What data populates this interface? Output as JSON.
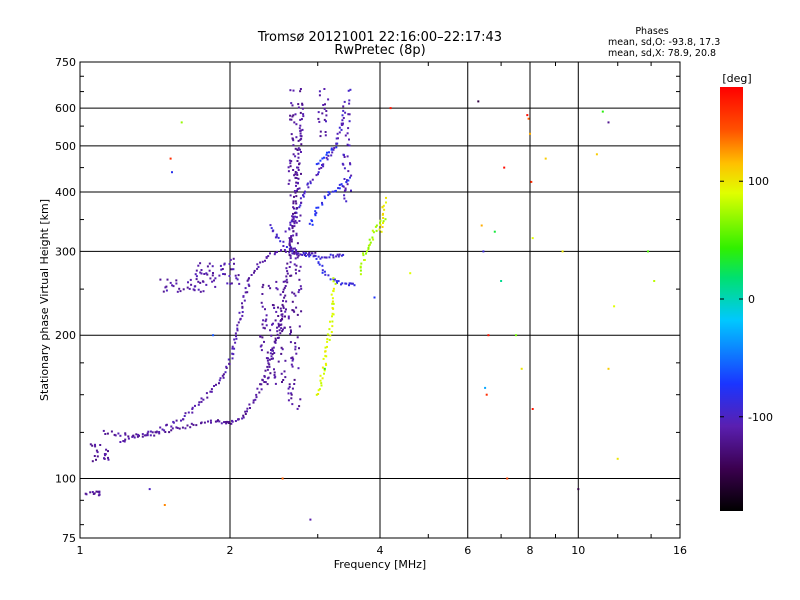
{
  "chart_data": {
    "type": "scatter",
    "title": "Tromsø 20121001 22:16:00–22:17:43",
    "subtitle": "RwPretec (8p)",
    "xlabel": "Frequency [MHz]",
    "ylabel": "Stationary phase Virtual Height [km]",
    "x_scale": "log",
    "y_scale": "log",
    "xlim": [
      1,
      16
    ],
    "ylim": [
      75,
      750
    ],
    "x_ticks": [
      1,
      2,
      4,
      6,
      8,
      10,
      16
    ],
    "x_tick_labels": [
      "1",
      "2",
      "4",
      "6",
      "8",
      "10",
      "16"
    ],
    "y_ticks": [
      75,
      100,
      200,
      300,
      400,
      500,
      600,
      750
    ],
    "y_tick_labels": [
      "75",
      "100",
      "200",
      "300",
      "400",
      "500",
      "600",
      "750"
    ],
    "grid": true,
    "colorbar": {
      "label": "[deg]",
      "range": [
        -180,
        180
      ],
      "ticks": [
        100,
        0,
        -100
      ],
      "tick_labels": [
        "100",
        "0",
        "-100"
      ]
    },
    "annotation": {
      "heading": "Phases",
      "line1": "mean, sd,O:  -93.8, 17.3",
      "line2": "mean, sd,X:  78.9, 20.8"
    },
    "series": [
      {
        "kind": "curve",
        "phase": -115,
        "x": [
          1.12,
          1.2,
          1.3,
          1.4,
          1.5,
          1.6,
          1.7,
          1.8,
          1.9,
          1.95,
          2.0,
          2.05,
          2.1,
          2.15,
          2.2,
          2.3,
          2.4,
          2.5,
          2.55,
          2.6,
          2.65,
          2.7,
          2.75,
          2.8
        ],
        "y": [
          125,
          124,
          123,
          124,
          126,
          128,
          130,
          131,
          132,
          131,
          131,
          132,
          134,
          137,
          142,
          155,
          175,
          200,
          230,
          260,
          310,
          380,
          480,
          620
        ]
      },
      {
        "kind": "curve",
        "phase": -110,
        "x": [
          1.2,
          1.3,
          1.45,
          1.6,
          1.75,
          1.9,
          2.0,
          2.05,
          2.1,
          2.15,
          2.2,
          2.3,
          2.4,
          2.5,
          2.6,
          2.7,
          2.8,
          2.9,
          3.0
        ],
        "y": [
          120,
          122,
          127,
          133,
          145,
          158,
          175,
          200,
          220,
          245,
          265,
          285,
          295,
          300,
          300,
          298,
          297,
          297,
          298
        ]
      },
      {
        "kind": "curve",
        "phase": -95,
        "x": [
          2.4,
          2.5,
          2.6,
          2.7,
          2.8,
          2.9,
          3.0,
          3.1,
          3.2,
          3.3,
          3.4
        ],
        "y": [
          340,
          320,
          308,
          300,
          296,
          294,
          292,
          292,
          293,
          294,
          296
        ]
      },
      {
        "kind": "curve",
        "phase": -85,
        "x": [
          3.0,
          3.1,
          3.2,
          3.3,
          3.4,
          3.5,
          3.55
        ],
        "y": [
          290,
          270,
          262,
          258,
          257,
          256,
          255
        ]
      },
      {
        "kind": "curve",
        "phase": -80,
        "x": [
          2.9,
          3.0,
          3.1,
          3.2,
          3.3,
          3.4,
          3.5
        ],
        "y": [
          340,
          370,
          390,
          400,
          410,
          420,
          430
        ]
      },
      {
        "kind": "curve",
        "phase": -75,
        "x": [
          3.0,
          3.1,
          3.2,
          3.3
        ],
        "y": [
          460,
          470,
          490,
          510
        ]
      },
      {
        "kind": "curve",
        "phase": -100,
        "x": [
          2.6,
          2.7,
          2.8,
          2.9,
          3.0,
          3.1,
          3.2,
          3.3,
          3.4
        ],
        "y": [
          330,
          360,
          390,
          420,
          440,
          460,
          480,
          520,
          600
        ]
      },
      {
        "kind": "curve",
        "phase": 90,
        "x": [
          3.0,
          3.05,
          3.1,
          3.15,
          3.2,
          3.22,
          3.25
        ],
        "y": [
          150,
          160,
          175,
          195,
          215,
          240,
          265
        ]
      },
      {
        "kind": "curve",
        "phase": 75,
        "x": [
          3.65,
          3.7,
          3.75,
          3.8,
          3.9,
          4.0,
          4.1
        ],
        "y": [
          270,
          290,
          300,
          310,
          330,
          345,
          355
        ]
      },
      {
        "kind": "curve",
        "phase": 100,
        "x": [
          4.0,
          4.05,
          4.1
        ],
        "y": [
          330,
          360,
          390
        ]
      },
      {
        "kind": "band",
        "phase": -115,
        "x": 2.62,
        "x2": 2.78,
        "y0": 140,
        "y1": 660
      },
      {
        "kind": "band",
        "phase": -110,
        "x": 3.0,
        "x2": 3.15,
        "y0": 520,
        "y1": 660
      },
      {
        "kind": "band",
        "phase": -105,
        "x": 3.35,
        "x2": 3.5,
        "y0": 380,
        "y1": 660
      },
      {
        "kind": "blob",
        "phase": -118,
        "x": [
          1.02,
          1.1
        ],
        "y": [
          92,
          94
        ]
      },
      {
        "kind": "blob",
        "phase": -118,
        "x": [
          1.05,
          1.15
        ],
        "y": [
          108,
          118
        ]
      },
      {
        "kind": "blob",
        "phase": -110,
        "x": [
          1.45,
          1.9
        ],
        "y": [
          245,
          262
        ]
      },
      {
        "kind": "blob",
        "phase": -110,
        "x": [
          1.7,
          2.1
        ],
        "y": [
          255,
          290
        ]
      },
      {
        "kind": "blob",
        "phase": -115,
        "x": [
          2.3,
          2.6
        ],
        "y": [
          155,
          260
        ]
      }
    ],
    "scatter_outliers": [
      {
        "x": 1.38,
        "y": 95,
        "phase": -100
      },
      {
        "x": 1.48,
        "y": 88,
        "phase": 130
      },
      {
        "x": 1.52,
        "y": 470,
        "phase": 160
      },
      {
        "x": 1.53,
        "y": 440,
        "phase": -80
      },
      {
        "x": 1.6,
        "y": 560,
        "phase": 70
      },
      {
        "x": 1.85,
        "y": 200,
        "phase": -60
      },
      {
        "x": 2.55,
        "y": 100,
        "phase": 140
      },
      {
        "x": 2.9,
        "y": 82,
        "phase": -110
      },
      {
        "x": 3.1,
        "y": 170,
        "phase": 40
      },
      {
        "x": 3.9,
        "y": 240,
        "phase": -75
      },
      {
        "x": 4.2,
        "y": 600,
        "phase": 170
      },
      {
        "x": 4.6,
        "y": 270,
        "phase": 90
      },
      {
        "x": 6.3,
        "y": 620,
        "phase": -150
      },
      {
        "x": 6.4,
        "y": 340,
        "phase": 120
      },
      {
        "x": 6.45,
        "y": 300,
        "phase": -90
      },
      {
        "x": 6.5,
        "y": 155,
        "phase": -30
      },
      {
        "x": 6.55,
        "y": 150,
        "phase": 160
      },
      {
        "x": 6.6,
        "y": 200,
        "phase": 170
      },
      {
        "x": 6.8,
        "y": 330,
        "phase": 30
      },
      {
        "x": 7.0,
        "y": 260,
        "phase": 10
      },
      {
        "x": 7.1,
        "y": 450,
        "phase": 175
      },
      {
        "x": 7.2,
        "y": 100,
        "phase": 150
      },
      {
        "x": 7.5,
        "y": 200,
        "phase": 60
      },
      {
        "x": 7.7,
        "y": 170,
        "phase": 100
      },
      {
        "x": 7.9,
        "y": 580,
        "phase": 175
      },
      {
        "x": 7.95,
        "y": 570,
        "phase": 140
      },
      {
        "x": 8.0,
        "y": 530,
        "phase": 120
      },
      {
        "x": 8.05,
        "y": 420,
        "phase": 160
      },
      {
        "x": 8.1,
        "y": 320,
        "phase": 90
      },
      {
        "x": 8.1,
        "y": 140,
        "phase": 170
      },
      {
        "x": 8.6,
        "y": 470,
        "phase": 110
      },
      {
        "x": 9.3,
        "y": 300,
        "phase": 100
      },
      {
        "x": 10.0,
        "y": 95,
        "phase": -150
      },
      {
        "x": 10.9,
        "y": 480,
        "phase": 110
      },
      {
        "x": 11.2,
        "y": 590,
        "phase": 40
      },
      {
        "x": 11.5,
        "y": 560,
        "phase": -120
      },
      {
        "x": 11.8,
        "y": 230,
        "phase": 90
      },
      {
        "x": 11.5,
        "y": 170,
        "phase": 110
      },
      {
        "x": 12.0,
        "y": 110,
        "phase": 100
      },
      {
        "x": 13.8,
        "y": 300,
        "phase": 50
      },
      {
        "x": 14.2,
        "y": 260,
        "phase": 80
      }
    ]
  }
}
